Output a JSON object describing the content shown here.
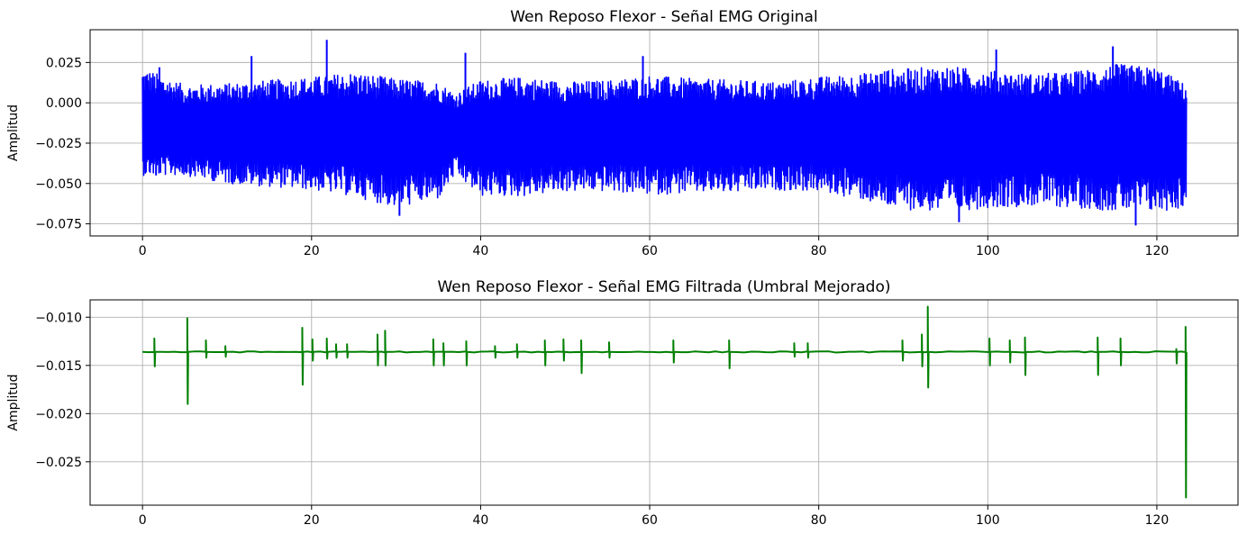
{
  "chart_data": [
    {
      "type": "line",
      "title": "Wen Reposo Flexor - Señal EMG Original",
      "xlabel": "",
      "ylabel": "Amplitud",
      "xlim": [
        -6.2,
        129.6
      ],
      "ylim": [
        -0.0825,
        0.0453
      ],
      "xticks": [
        0,
        20,
        40,
        60,
        80,
        100,
        120
      ],
      "xtick_labels": [
        "0",
        "20",
        "40",
        "60",
        "80",
        "100",
        "120"
      ],
      "yticks": [
        0.025,
        0.0,
        -0.025,
        -0.05,
        -0.075
      ],
      "ytick_labels": [
        "0.025",
        "0.000",
        "−0.025",
        "−0.050",
        "−0.075"
      ],
      "grid": true,
      "series": [
        {
          "color": "#0000ff",
          "x_range": [
            0,
            123.5
          ],
          "baseline": -0.0165,
          "envelope_x": [
            0,
            5,
            10,
            15,
            20,
            25,
            30,
            35,
            37,
            40,
            45,
            50,
            55,
            60,
            65,
            70,
            75,
            80,
            85,
            88,
            90,
            95,
            100,
            105,
            110,
            115,
            120,
            123.5
          ],
          "envelope_max": [
            0.022,
            0.011,
            0.012,
            0.014,
            0.016,
            0.019,
            0.015,
            0.013,
            0.006,
            0.014,
            0.016,
            0.013,
            0.014,
            0.017,
            0.015,
            0.014,
            0.013,
            0.016,
            0.018,
            0.021,
            0.021,
            0.023,
            0.02,
            0.018,
            0.019,
            0.024,
            0.022,
            0.011
          ],
          "envelope_min": [
            -0.045,
            -0.045,
            -0.05,
            -0.052,
            -0.054,
            -0.058,
            -0.065,
            -0.06,
            -0.045,
            -0.058,
            -0.058,
            -0.055,
            -0.055,
            -0.057,
            -0.056,
            -0.056,
            -0.054,
            -0.055,
            -0.06,
            -0.065,
            -0.066,
            -0.068,
            -0.065,
            -0.064,
            -0.065,
            -0.067,
            -0.068,
            -0.065
          ],
          "peaks": [
            {
              "x": 12.9,
              "y": 0.029
            },
            {
              "x": 21.8,
              "y": 0.039
            },
            {
              "x": 38.2,
              "y": 0.031
            },
            {
              "x": 59.2,
              "y": 0.029
            },
            {
              "x": 101.0,
              "y": 0.033
            },
            {
              "x": 114.8,
              "y": 0.035
            },
            {
              "x": 30.4,
              "y": -0.07
            },
            {
              "x": 96.6,
              "y": -0.074
            },
            {
              "x": 117.5,
              "y": -0.076
            },
            {
              "x": 2.0,
              "y": 0.022
            },
            {
              "x": 1.6,
              "y": -0.045
            }
          ]
        }
      ]
    },
    {
      "type": "line",
      "title": "Wen Reposo Flexor - Señal EMG Filtrada (Umbral Mejorado)",
      "xlabel": "",
      "ylabel": "Amplitud",
      "xlim": [
        -6.2,
        129.6
      ],
      "ylim": [
        -0.0295,
        -0.0082
      ],
      "xticks": [
        0,
        20,
        40,
        60,
        80,
        100,
        120
      ],
      "xtick_labels": [
        "0",
        "20",
        "40",
        "60",
        "80",
        "100",
        "120"
      ],
      "yticks": [
        -0.01,
        -0.015,
        -0.02,
        -0.025
      ],
      "ytick_labels": [
        "−0.010",
        "−0.015",
        "−0.020",
        "−0.025"
      ],
      "grid": true,
      "series": [
        {
          "color": "#008000",
          "x_range": [
            0,
            123.5
          ],
          "baseline": -0.0136,
          "spikes": [
            [
              1.4,
              -0.0122,
              -0.0151
            ],
            [
              5.3,
              -0.0101,
              -0.019
            ],
            [
              7.5,
              -0.0124,
              -0.0142
            ],
            [
              9.8,
              -0.013,
              -0.0141
            ],
            [
              18.9,
              -0.0111,
              -0.017
            ],
            [
              20.1,
              -0.0123,
              -0.0145
            ],
            [
              21.8,
              -0.0122,
              -0.0143
            ],
            [
              22.9,
              -0.0128,
              -0.0142
            ],
            [
              24.2,
              -0.0128,
              -0.0142
            ],
            [
              27.8,
              -0.0118,
              -0.015
            ],
            [
              28.7,
              -0.0114,
              -0.015
            ],
            [
              34.4,
              -0.0123,
              -0.015
            ],
            [
              35.6,
              -0.0127,
              -0.015
            ],
            [
              38.3,
              -0.0125,
              -0.015
            ],
            [
              41.7,
              -0.013,
              -0.0142
            ],
            [
              44.3,
              -0.0128,
              -0.0142
            ],
            [
              47.6,
              -0.0124,
              -0.015
            ],
            [
              49.8,
              -0.0123,
              -0.0145
            ],
            [
              51.9,
              -0.0124,
              -0.0158
            ],
            [
              55.2,
              -0.0126,
              -0.0142
            ],
            [
              62.8,
              -0.0124,
              -0.0147
            ],
            [
              69.4,
              -0.0124,
              -0.0153
            ],
            [
              77.1,
              -0.0127,
              -0.0141
            ],
            [
              78.7,
              -0.0127,
              -0.0142
            ],
            [
              89.9,
              -0.0124,
              -0.0145
            ],
            [
              92.2,
              -0.0118,
              -0.0151
            ],
            [
              92.9,
              -0.0089,
              -0.0173
            ],
            [
              100.2,
              -0.0122,
              -0.015
            ],
            [
              102.6,
              -0.0124,
              -0.0147
            ],
            [
              104.4,
              -0.0121,
              -0.016
            ],
            [
              113.0,
              -0.0121,
              -0.016
            ],
            [
              115.7,
              -0.0122,
              -0.015
            ],
            [
              122.3,
              -0.0133,
              -0.0148
            ],
            [
              123.4,
              -0.011,
              -0.0287
            ]
          ]
        }
      ]
    }
  ]
}
